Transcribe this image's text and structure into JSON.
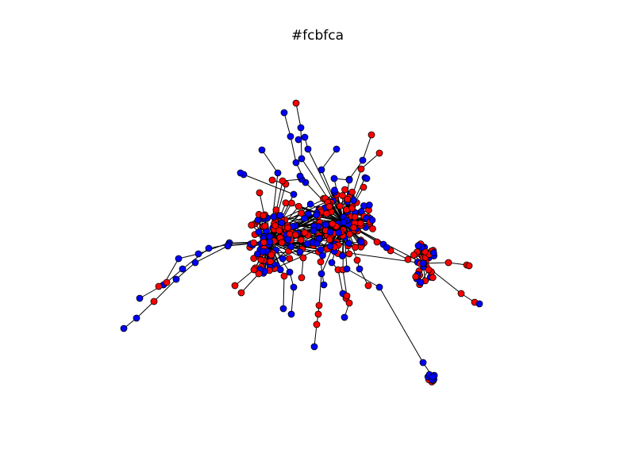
{
  "figure": {
    "title": "#fcbfca"
  },
  "graph": {
    "node_colors": {
      "red": "#ff0000",
      "blue": "#0000ff"
    },
    "edge_color": "#000000",
    "node_outline": "#000000",
    "background": "#ffffff",
    "clusters": [
      {
        "id": "left-dense-cluster",
        "node_count": 90,
        "red_fraction": 0.55
      },
      {
        "id": "center-dense-cluster",
        "node_count": 110,
        "red_fraction": 0.6
      },
      {
        "id": "right-cluster",
        "node_count": 35,
        "red_fraction": 0.75
      },
      {
        "id": "bottom-right-cluster",
        "node_count": 10,
        "red_fraction": 0.3
      }
    ]
  }
}
